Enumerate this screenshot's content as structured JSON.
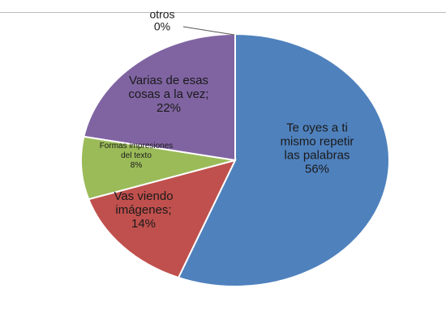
{
  "chart_data": {
    "type": "pie",
    "title": "",
    "slices": [
      {
        "label_lines": [
          "Te oyes a ti",
          "mismo repetir",
          "las palabras"
        ],
        "percent_text": "56%",
        "value": 56,
        "color": "#4f81bd"
      },
      {
        "label_lines": [
          "Vas viendo",
          "imágenes;"
        ],
        "percent_text": "14%",
        "value": 14,
        "color": "#c0504d"
      },
      {
        "label_lines": [
          "Formas impresiones",
          "del texto"
        ],
        "percent_text": "8%",
        "value": 8,
        "color": "#9bbb59"
      },
      {
        "label_lines": [
          "Varias de esas",
          "cosas a la vez;"
        ],
        "percent_text": "22%",
        "value": 22,
        "color": "#8064a2"
      },
      {
        "label_lines": [
          "otros"
        ],
        "percent_text": "0%",
        "value": 0,
        "color": "#f79646"
      }
    ],
    "start": "top (12 o'clock)",
    "direction": "clockwise",
    "legend": "none",
    "slice_border_color": "#ffffff"
  }
}
